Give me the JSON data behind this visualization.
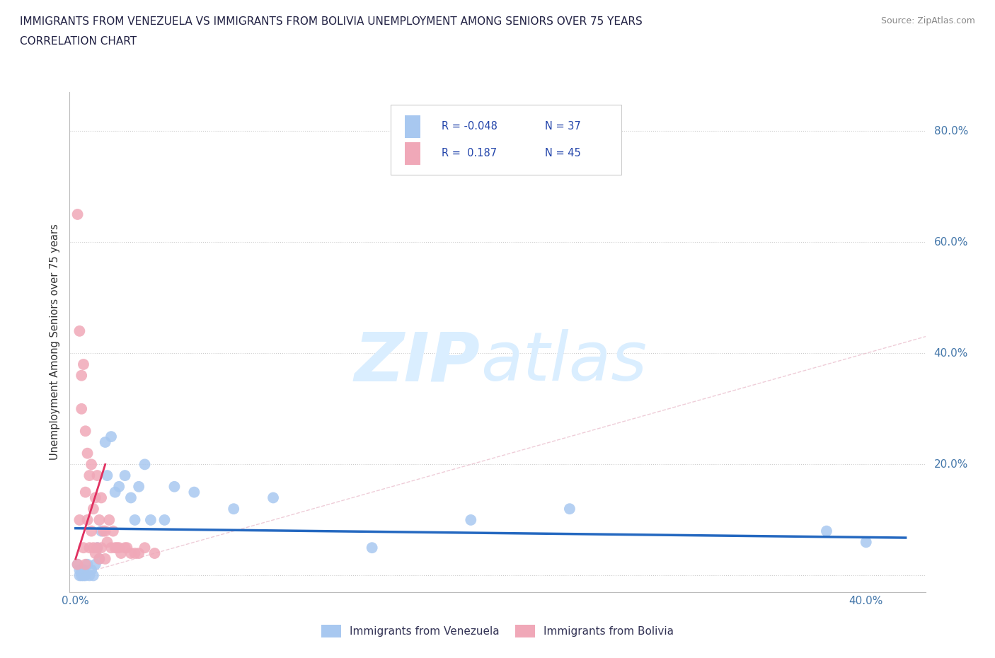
{
  "title_line1": "IMMIGRANTS FROM VENEZUELA VS IMMIGRANTS FROM BOLIVIA UNEMPLOYMENT AMONG SENIORS OVER 75 YEARS",
  "title_line2": "CORRELATION CHART",
  "source": "Source: ZipAtlas.com",
  "ylabel_label": "Unemployment Among Seniors over 75 years",
  "xlim": [
    -0.003,
    0.43
  ],
  "ylim": [
    -0.03,
    0.87
  ],
  "r_venezuela": -0.048,
  "n_venezuela": 37,
  "r_bolivia": 0.187,
  "n_bolivia": 45,
  "color_venezuela": "#a8c8f0",
  "color_bolivia": "#f0a8b8",
  "trendline_venezuela_color": "#2468c0",
  "trendline_bolivia_color": "#e03060",
  "watermark_color": "#daeeff",
  "venezuela_x": [
    0.001,
    0.002,
    0.002,
    0.003,
    0.003,
    0.004,
    0.004,
    0.005,
    0.006,
    0.007,
    0.008,
    0.009,
    0.01,
    0.011,
    0.012,
    0.013,
    0.015,
    0.016,
    0.018,
    0.02,
    0.022,
    0.025,
    0.028,
    0.03,
    0.032,
    0.035,
    0.038,
    0.045,
    0.05,
    0.06,
    0.08,
    0.1,
    0.15,
    0.2,
    0.25,
    0.38,
    0.4
  ],
  "venezuela_y": [
    0.02,
    0.0,
    0.01,
    0.0,
    0.01,
    0.01,
    0.0,
    0.0,
    0.02,
    0.0,
    0.01,
    0.0,
    0.02,
    0.05,
    0.03,
    0.08,
    0.24,
    0.18,
    0.25,
    0.15,
    0.16,
    0.18,
    0.14,
    0.1,
    0.16,
    0.2,
    0.1,
    0.1,
    0.16,
    0.15,
    0.12,
    0.14,
    0.05,
    0.1,
    0.12,
    0.08,
    0.06
  ],
  "bolivia_x": [
    0.001,
    0.001,
    0.002,
    0.002,
    0.003,
    0.003,
    0.004,
    0.004,
    0.005,
    0.005,
    0.005,
    0.006,
    0.006,
    0.007,
    0.007,
    0.008,
    0.008,
    0.009,
    0.009,
    0.01,
    0.01,
    0.011,
    0.011,
    0.012,
    0.012,
    0.013,
    0.013,
    0.014,
    0.015,
    0.015,
    0.016,
    0.017,
    0.018,
    0.019,
    0.02,
    0.021,
    0.022,
    0.023,
    0.025,
    0.026,
    0.028,
    0.03,
    0.032,
    0.035,
    0.04
  ],
  "bolivia_y": [
    0.65,
    0.02,
    0.44,
    0.1,
    0.36,
    0.3,
    0.38,
    0.05,
    0.26,
    0.15,
    0.02,
    0.22,
    0.1,
    0.18,
    0.05,
    0.2,
    0.08,
    0.12,
    0.05,
    0.14,
    0.04,
    0.18,
    0.05,
    0.1,
    0.03,
    0.14,
    0.05,
    0.08,
    0.08,
    0.03,
    0.06,
    0.1,
    0.05,
    0.08,
    0.05,
    0.05,
    0.05,
    0.04,
    0.05,
    0.05,
    0.04,
    0.04,
    0.04,
    0.05,
    0.04
  ]
}
